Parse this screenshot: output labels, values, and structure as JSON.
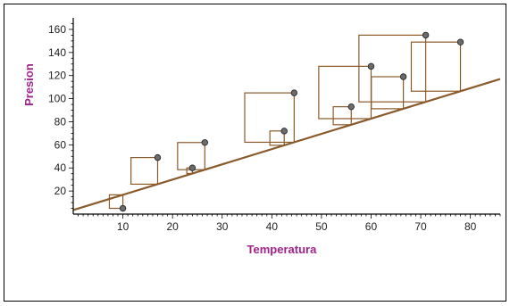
{
  "chart_data": {
    "type": "scatter",
    "title": "",
    "xlabel": "Temperatura",
    "ylabel": "Presion",
    "xlim": [
      0,
      86
    ],
    "ylim": [
      0,
      170
    ],
    "xticks": [
      10,
      20,
      30,
      40,
      50,
      60,
      70,
      80
    ],
    "yticks": [
      20,
      40,
      60,
      80,
      100,
      120,
      140,
      160
    ],
    "points": [
      {
        "x": 10,
        "y": 5
      },
      {
        "x": 17,
        "y": 49
      },
      {
        "x": 24,
        "y": 40
      },
      {
        "x": 26.5,
        "y": 62
      },
      {
        "x": 42.5,
        "y": 72
      },
      {
        "x": 44.5,
        "y": 105
      },
      {
        "x": 56,
        "y": 93
      },
      {
        "x": 60,
        "y": 128
      },
      {
        "x": 66.5,
        "y": 119
      },
      {
        "x": 71,
        "y": 155
      },
      {
        "x": 78,
        "y": 149
      }
    ],
    "regression_line": {
      "intercept": 3.5,
      "slope": 1.32
    },
    "residual_squares": true,
    "colors": {
      "line": "#8b5a2b",
      "squares": "#8b5a2b",
      "points": "#6b6b6b",
      "axis_labels": "#a0228c"
    }
  }
}
